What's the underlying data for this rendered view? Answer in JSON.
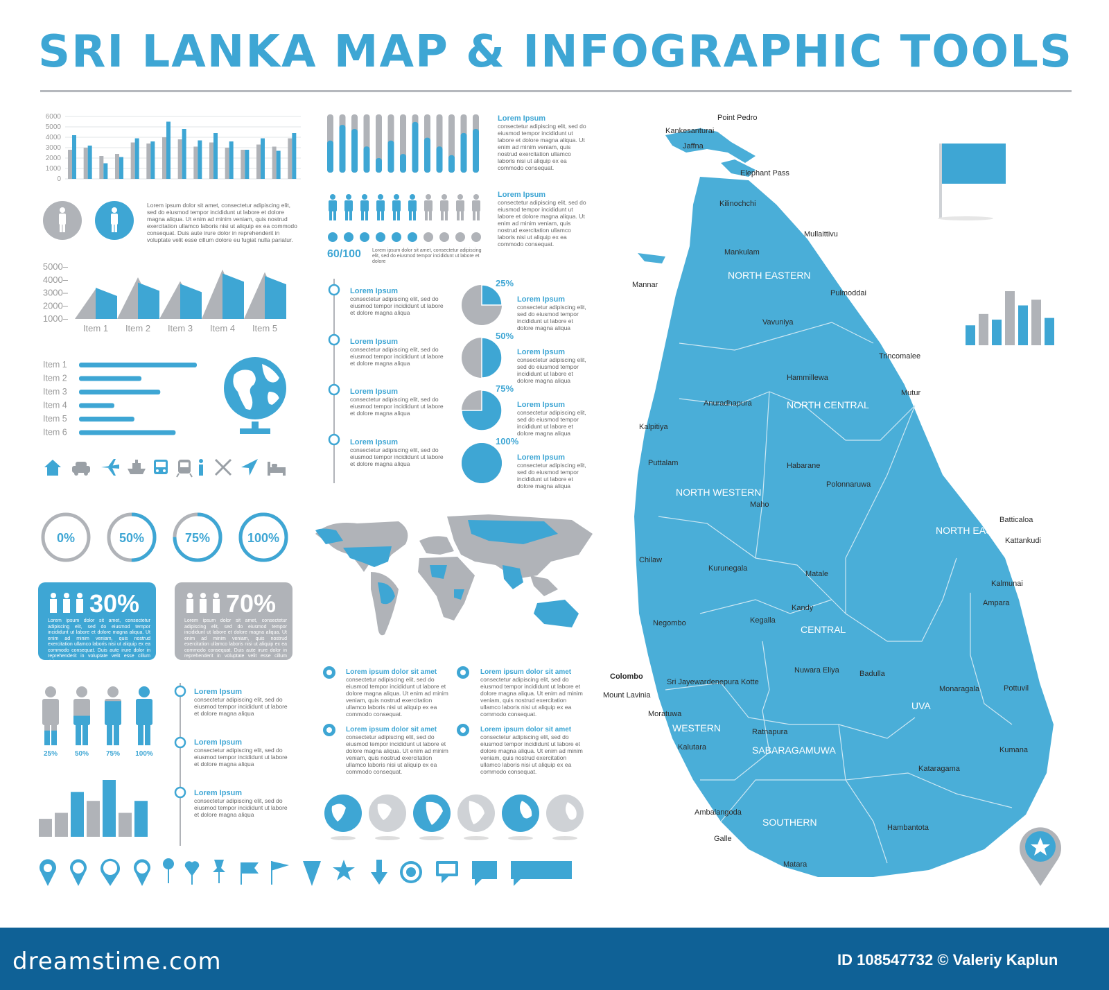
{
  "title": "SRI LANKA MAP & INFOGRAPHIC TOOLS",
  "colors": {
    "blue": "#3ea6d4",
    "gray": "#b0b3b8",
    "footer": "#0f6196",
    "map": "#4aaed8"
  },
  "lorem_short": "Lorem Ipsum",
  "lorem_line": "Lorem ipsum dolor sit amet",
  "lorem_body": "consectetur adipiscing elit, sed do eiusmod tempor incididunt ut labore et dolore magna aliqua",
  "lorem_body_long": "consectetur adipiscing elit, sed do eiusmod tempor incididunt ut labore et dolore magna aliqua. Ut enim ad minim veniam, quis nostrud exercitation ullamco laboris nisi ut aliquip ex ea commodo consequat.",
  "lorem_para": "Lorem ipsum dolor sit amet, consectetur adipiscing elit, sed do eiusmod tempor incididunt ut labore et dolore magna aliqua. Ut enim ad minim veniam, quis nostrud exercitation ullamco laboris nisi ut aliquip ex ea commodo consequat. Duis aute irure dolor in reprehenderit in voluptate velit esse cillum dolore eu fugiat nulla pariatur.",
  "lorem_small": "Lorem ipsum dolor sit amet, consectetur adipiscing elit, sed do eiusmod tempor incididunt ut labore et dolore",
  "lorem_card": "Lorem ipsum dolor sit amet, consectetur adipiscing elit, sed do eiusmod tempor incididunt ut labore et dolore magna aliqua. Ut enim ad minim veniam, quis nostrud exercitation ullamco laboris nisi ut aliquip ex ea commodo consequat. Duis aute irure dolor in reprehenderit in voluptate velit esse cillum dolore eu",
  "ratio_label": "60/100",
  "chart_data": [
    {
      "type": "bar",
      "yticks": [
        "6000",
        "5000",
        "4000",
        "3000",
        "2000",
        "1000",
        "0"
      ],
      "ylim": [
        0,
        6000
      ],
      "series": [
        {
          "color": "gray",
          "values": [
            2800,
            3000,
            2200,
            2400,
            3500,
            3400,
            4000,
            3800,
            3100,
            3500,
            3000,
            2800,
            3300,
            3100,
            3900
          ]
        },
        {
          "color": "blue",
          "values": [
            4200,
            3200,
            1500,
            2100,
            3900,
            3600,
            5500,
            4800,
            3700,
            4400,
            3600,
            2800,
            3900,
            2700,
            4400
          ]
        }
      ]
    },
    {
      "type": "area",
      "yticks": [
        "5000",
        "4000",
        "3000",
        "2000",
        "1000"
      ],
      "ylim": [
        1000,
        5000
      ],
      "categories": [
        "Item 1",
        "Item 2",
        "Item 3",
        "Item 4",
        "Item 5"
      ],
      "pairs": [
        [
          3300,
          3400
        ],
        [
          4200,
          3800
        ],
        [
          3900,
          3700
        ],
        [
          4800,
          4500
        ],
        [
          4600,
          4300
        ]
      ]
    },
    {
      "type": "bar",
      "orientation": "horizontal",
      "categories": [
        "Item 1",
        "Item 2",
        "Item 3",
        "Item 4",
        "Item 5",
        "Item 6"
      ],
      "values": [
        100,
        53,
        69,
        30,
        47,
        82
      ]
    },
    {
      "type": "bar",
      "orientation": "vertical-progress",
      "values": [
        0.55,
        0.82,
        0.75,
        0.45,
        0.25,
        0.55,
        0.32,
        0.87,
        0.6,
        0.45,
        0.3,
        0.68,
        0.75
      ]
    },
    {
      "type": "bar",
      "values": [
        30,
        40,
        75,
        60,
        95,
        40,
        60
      ],
      "colors": [
        "gray",
        "gray",
        "blue",
        "gray",
        "blue",
        "gray",
        "blue"
      ]
    },
    {
      "type": "bar",
      "values": [
        35,
        55,
        45,
        95,
        70,
        80,
        48
      ],
      "colors": [
        "blue",
        "gray",
        "blue",
        "gray",
        "blue",
        "gray",
        "blue"
      ]
    },
    {
      "type": "pie",
      "items": [
        {
          "value": 25,
          "label": "25%"
        },
        {
          "value": 50,
          "label": "50%"
        },
        {
          "value": 75,
          "label": "75%"
        },
        {
          "value": 100,
          "label": "100%"
        }
      ]
    },
    {
      "type": "donut",
      "items": [
        {
          "value": 0,
          "label": "0%"
        },
        {
          "value": 50,
          "label": "50%"
        },
        {
          "value": 75,
          "label": "75%"
        },
        {
          "value": 100,
          "label": "100%"
        }
      ]
    },
    {
      "type": "pictogram",
      "people_total": 10,
      "people_highlight": 6,
      "dots_total": 10,
      "dots_highlight": 6
    }
  ],
  "people_fill": [
    {
      "value": 25,
      "label": "25%"
    },
    {
      "value": 50,
      "label": "50%"
    },
    {
      "value": 75,
      "label": "75%"
    },
    {
      "value": 100,
      "label": "100%"
    }
  ],
  "stat_cards": [
    {
      "pct": "30%",
      "color": "blue"
    },
    {
      "pct": "70%",
      "color": "gray"
    }
  ],
  "map": {
    "regions": [
      "NORTH EASTERN",
      "NORTH CENTRAL",
      "NORTH WESTERN",
      "NORTH EASTERN",
      "CENTRAL",
      "WESTERN",
      "SABARAGAMUWA",
      "UVA",
      "SOUTHERN"
    ],
    "cities": [
      "Point Pedro",
      "Kankesanturai",
      "Jaffna",
      "Elephant Pass",
      "Kilinochchi",
      "Mullaittivu",
      "Mankulam",
      "Mannar",
      "Pulmoddai",
      "Vavuniya",
      "Trincomalee",
      "Hammillewa",
      "Anuradhapura",
      "Mutur",
      "Kalpitiya",
      "Puttalam",
      "Habarane",
      "Polonnaruwa",
      "Maho",
      "Batticaloa",
      "Kattankudi",
      "Chilaw",
      "Kurunegala",
      "Matale",
      "Kalmunai",
      "Ampara",
      "Negombo",
      "Kandy",
      "Kegalla",
      "Colombo",
      "Sri Jayewardenepura Kotte",
      "Nuwara Eliya",
      "Badulla",
      "Mount Lavinia",
      "Monaragala",
      "Pottuvil",
      "Moratuwa",
      "Ratnapura",
      "Kalutara",
      "Kumana",
      "Kataragama",
      "Ambalangoda",
      "Galle",
      "Hambantota",
      "Matara"
    ]
  },
  "footer": {
    "logo": "dreamstime.com",
    "id": "ID 108547732 © Valeriy Kaplun"
  }
}
